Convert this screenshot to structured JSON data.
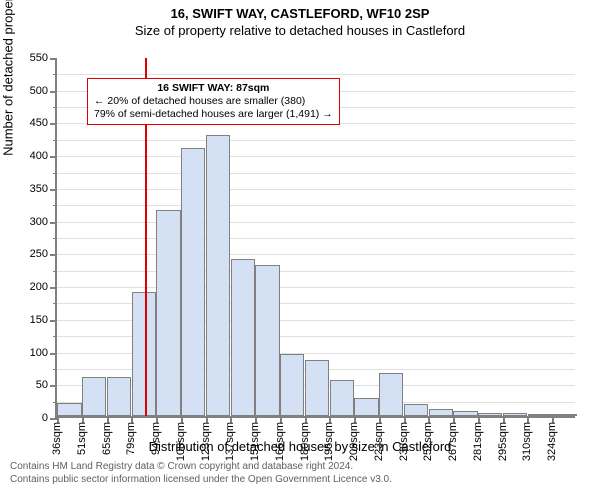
{
  "header": {
    "line1": "16, SWIFT WAY, CASTLEFORD, WF10 2SP",
    "line2": "Size of property relative to detached houses in Castleford"
  },
  "chart": {
    "type": "histogram",
    "y_axis_title": "Number of detached properties",
    "x_axis_title": "Distribution of detached houses by size in Castleford",
    "ylim": [
      0,
      550
    ],
    "ytick_major_step": 50,
    "ytick_minor_step": 25,
    "grid_color": "#e0e0e0",
    "axis_color": "#808080",
    "bar_fill": "#d4e1f5",
    "bar_stroke": "#808080",
    "background_color": "#ffffff",
    "ref_line": {
      "x_value": 87,
      "color": "#e00000"
    },
    "categories": [
      "36sqm",
      "51sqm",
      "65sqm",
      "79sqm",
      "94sqm",
      "108sqm",
      "123sqm",
      "137sqm",
      "151sqm",
      "166sqm",
      "180sqm",
      "195sqm",
      "209sqm",
      "223sqm",
      "238sqm",
      "252sqm",
      "267sqm",
      "281sqm",
      "295sqm",
      "310sqm",
      "324sqm"
    ],
    "values": [
      20,
      60,
      60,
      190,
      315,
      410,
      430,
      240,
      230,
      95,
      85,
      55,
      28,
      65,
      18,
      10,
      7,
      5,
      5,
      3,
      2
    ],
    "annotation": {
      "title": "16 SWIFT WAY: 87sqm",
      "line1": "← 20% of detached houses are smaller (380)",
      "line2": "79% of semi-detached houses are larger (1,491) →",
      "border_color": "#e00000"
    }
  },
  "footer": {
    "line1": "Contains HM Land Registry data © Crown copyright and database right 2024.",
    "line2": "Contains public sector information licensed under the Open Government Licence v3.0."
  }
}
